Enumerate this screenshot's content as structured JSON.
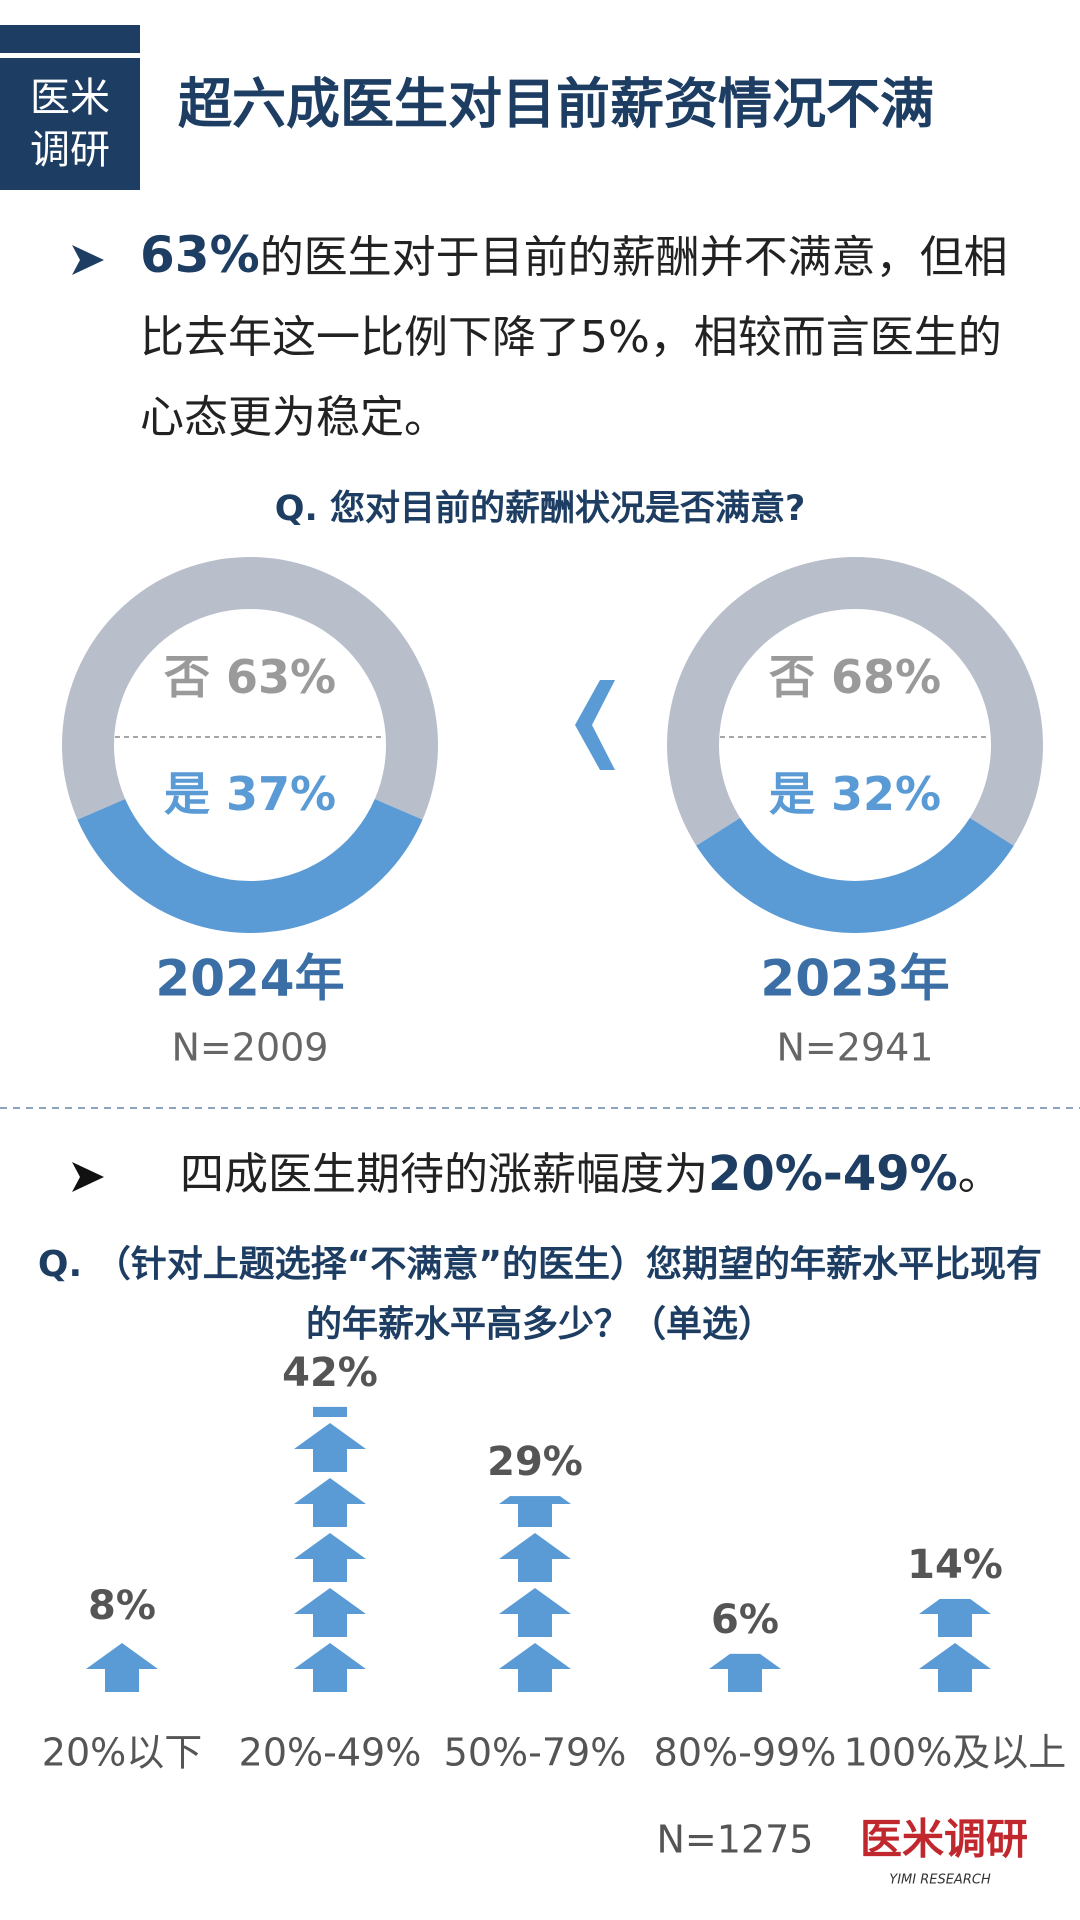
{
  "header": {
    "badge_top": "医米",
    "badge_bottom": "调研",
    "title": "超六成医生对目前薪资情况不满"
  },
  "bullet1": {
    "highlight": "63%",
    "text": "的医生对于目前的薪酬并不满意，但相比去年这一比例下降了5%，相较而言医生的心态更为稳定。"
  },
  "bullet2": {
    "text": "四成医生期待的涨薪幅度为",
    "highlight": "20%-49%",
    "end": "。"
  },
  "chart_data": [
    {
      "type": "donut",
      "title": "Q. 您对目前的薪酬状况是否满意?",
      "categories": [
        "否",
        "是"
      ],
      "colors": [
        "#b8bfcb",
        "#5b9bd5"
      ],
      "series": [
        {
          "name": "2024年",
          "sample": "N=2009",
          "values": [
            63,
            37
          ],
          "value_labels": [
            "63%",
            "37%"
          ]
        },
        {
          "name": "2023年",
          "sample": "N=2941",
          "values": [
            68,
            32
          ],
          "value_labels": [
            "68%",
            "32%"
          ]
        }
      ]
    },
    {
      "type": "pictogram",
      "title": "Q. （针对上题选择“不满意”的医生）您期望的年薪水平比现有的年薪水平高多少？（单选）",
      "categories": [
        "20%以下",
        "20%-49%",
        "50%-79%",
        "80%-99%",
        "100%及以上"
      ],
      "values": [
        8,
        42,
        29,
        6,
        14
      ],
      "value_labels": [
        "8%",
        "42%",
        "29%",
        "6%",
        "14%"
      ],
      "color": "#5b9bd5",
      "sample": "N=1275"
    }
  ],
  "footer": {
    "logo": "医米调研",
    "logo_sub": "YIMI RESEARCH"
  }
}
